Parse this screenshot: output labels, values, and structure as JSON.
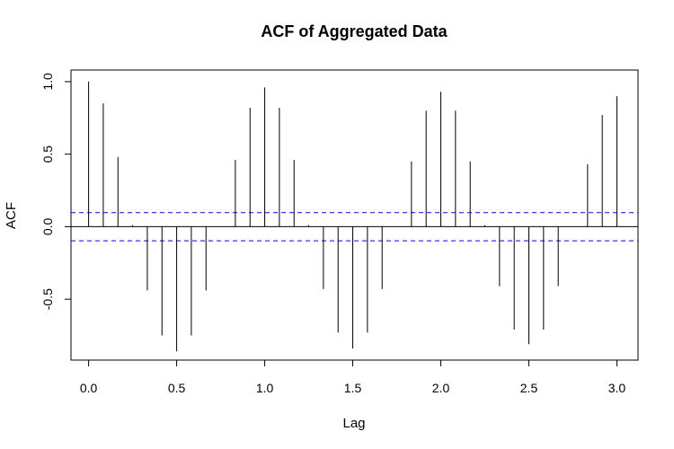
{
  "chart_data": {
    "type": "bar",
    "title": "ACF of Aggregated Data",
    "xlabel": "Lag",
    "ylabel": "ACF",
    "xlim": [
      -0.1,
      3.12
    ],
    "ylim": [
      -0.92,
      1.08
    ],
    "xticks": [
      "0.0",
      "0.5",
      "1.0",
      "1.5",
      "2.0",
      "2.5",
      "3.0"
    ],
    "xtick_values": [
      0.0,
      0.5,
      1.0,
      1.5,
      2.0,
      2.5,
      3.0
    ],
    "yticks": [
      "-0.5",
      "0.0",
      "0.5",
      "1.0"
    ],
    "ytick_values": [
      -0.5,
      0.0,
      0.5,
      1.0
    ],
    "lags": [
      0.0,
      0.0833,
      0.1667,
      0.25,
      0.3333,
      0.4167,
      0.5,
      0.5833,
      0.6667,
      0.75,
      0.8333,
      0.9167,
      1.0,
      1.0833,
      1.1667,
      1.25,
      1.3333,
      1.4167,
      1.5,
      1.5833,
      1.6667,
      1.75,
      1.8333,
      1.9167,
      2.0,
      2.0833,
      2.1667,
      2.25,
      2.3333,
      2.4167,
      2.5,
      2.5833,
      2.6667,
      2.75,
      2.8333,
      2.9167,
      3.0
    ],
    "values": [
      1.0,
      0.85,
      0.48,
      0.01,
      -0.44,
      -0.75,
      -0.86,
      -0.75,
      -0.44,
      0.0,
      0.46,
      0.82,
      0.96,
      0.82,
      0.46,
      0.01,
      -0.43,
      -0.73,
      -0.84,
      -0.73,
      -0.43,
      0.0,
      0.45,
      0.8,
      0.93,
      0.8,
      0.45,
      0.01,
      -0.41,
      -0.71,
      -0.81,
      -0.71,
      -0.41,
      0.0,
      0.43,
      0.77,
      0.9
    ],
    "confidence_bound": 0.097,
    "colors": {
      "bars": "#000000",
      "confidence": "#0000ff",
      "zero_line": "#000000"
    }
  }
}
